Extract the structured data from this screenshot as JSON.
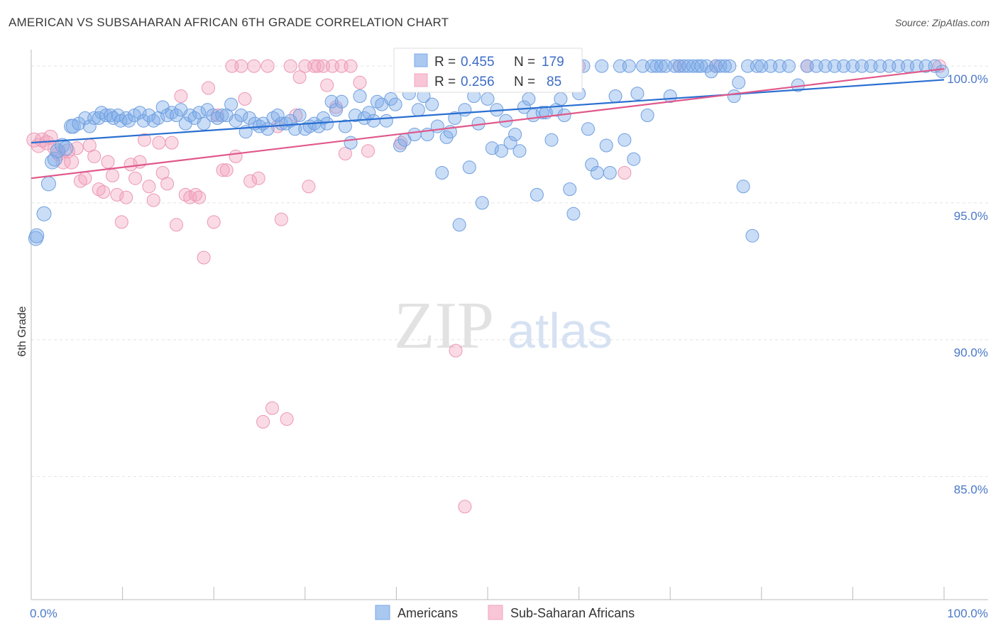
{
  "title": "AMERICAN VS SUBSAHARAN AFRICAN 6TH GRADE CORRELATION CHART",
  "source": "Source: ZipAtlas.com",
  "watermark": {
    "zip": "ZIP",
    "atlas": "atlas"
  },
  "colors": {
    "blue": "#7aaae8",
    "blue_line": "#2a6fd1",
    "pink": "#f2a6bf",
    "pink_line": "#e0588a",
    "tick": "#4a78c8"
  },
  "stats": {
    "american": {
      "r_label": "R =",
      "r": "0.455",
      "n_label": "N =",
      "n": "179"
    },
    "subsaharan": {
      "r_label": "R =",
      "r": "0.256",
      "n_label": "N =",
      "n": "85"
    }
  },
  "chart_data": {
    "type": "scatter",
    "title": "AMERICAN VS SUBSAHARAN AFRICAN 6TH GRADE CORRELATION CHART",
    "xlabel": "",
    "ylabel": "6th Grade",
    "xlim": [
      0,
      100
    ],
    "ylim": [
      80.5,
      100.6
    ],
    "x_tick_labels": [
      "0.0%",
      "100.0%"
    ],
    "y_ticks": [
      85,
      90,
      95,
      100
    ],
    "y_tick_labels": [
      "85.0%",
      "90.0%",
      "95.0%",
      "100.0%"
    ],
    "grid": true,
    "legend_position": "bottom-center",
    "series": [
      {
        "name": "Americans",
        "color": "#7aaae8",
        "trend": {
          "x": [
            0,
            100
          ],
          "y": [
            97.2,
            99.5
          ]
        },
        "points": [
          [
            0.5,
            93.7
          ],
          [
            0.6,
            93.8
          ],
          [
            1.4,
            94.6
          ],
          [
            1.9,
            95.7
          ],
          [
            2.3,
            96.5
          ],
          [
            2.6,
            96.6
          ],
          [
            2.9,
            96.9
          ],
          [
            3.4,
            97.1
          ],
          [
            3.8,
            97.0
          ],
          [
            4.4,
            97.8
          ],
          [
            4.6,
            97.8
          ],
          [
            5.2,
            97.9
          ],
          [
            5.9,
            98.1
          ],
          [
            6.4,
            97.8
          ],
          [
            6.9,
            98.1
          ],
          [
            7.4,
            98.1
          ],
          [
            7.7,
            98.3
          ],
          [
            8.2,
            98.2
          ],
          [
            8.7,
            98.2
          ],
          [
            9.0,
            98.1
          ],
          [
            9.5,
            98.2
          ],
          [
            9.8,
            98.0
          ],
          [
            10.4,
            98.1
          ],
          [
            10.7,
            98.0
          ],
          [
            11.3,
            98.2
          ],
          [
            11.9,
            98.3
          ],
          [
            12.3,
            98.0
          ],
          [
            12.9,
            98.2
          ],
          [
            13.4,
            98.0
          ],
          [
            13.9,
            98.1
          ],
          [
            14.4,
            98.5
          ],
          [
            14.9,
            98.2
          ],
          [
            15.4,
            98.3
          ],
          [
            15.9,
            98.2
          ],
          [
            16.4,
            98.4
          ],
          [
            16.9,
            97.9
          ],
          [
            17.4,
            98.2
          ],
          [
            17.9,
            98.1
          ],
          [
            18.4,
            98.3
          ],
          [
            18.9,
            97.9
          ],
          [
            19.3,
            98.4
          ],
          [
            19.9,
            98.2
          ],
          [
            20.4,
            98.1
          ],
          [
            20.9,
            98.2
          ],
          [
            21.4,
            98.2
          ],
          [
            21.9,
            98.6
          ],
          [
            22.4,
            98.0
          ],
          [
            23.0,
            98.2
          ],
          [
            23.5,
            97.6
          ],
          [
            23.9,
            98.1
          ],
          [
            24.5,
            97.9
          ],
          [
            25.0,
            97.8
          ],
          [
            25.4,
            97.9
          ],
          [
            25.9,
            97.7
          ],
          [
            26.5,
            98.1
          ],
          [
            27.0,
            98.2
          ],
          [
            27.4,
            97.9
          ],
          [
            27.9,
            97.9
          ],
          [
            28.4,
            98.0
          ],
          [
            28.9,
            97.7
          ],
          [
            29.4,
            98.2
          ],
          [
            30.0,
            97.7
          ],
          [
            30.5,
            97.8
          ],
          [
            31.0,
            97.9
          ],
          [
            31.5,
            97.8
          ],
          [
            32.0,
            98.1
          ],
          [
            32.4,
            97.9
          ],
          [
            32.9,
            98.7
          ],
          [
            33.4,
            98.4
          ],
          [
            34.0,
            98.7
          ],
          [
            34.4,
            97.8
          ],
          [
            35.0,
            97.2
          ],
          [
            35.5,
            98.2
          ],
          [
            36.0,
            98.9
          ],
          [
            36.5,
            98.1
          ],
          [
            37.0,
            98.3
          ],
          [
            37.5,
            98.0
          ],
          [
            37.9,
            98.7
          ],
          [
            38.4,
            98.6
          ],
          [
            38.9,
            98.0
          ],
          [
            39.4,
            98.8
          ],
          [
            39.9,
            98.6
          ],
          [
            40.4,
            97.1
          ],
          [
            40.9,
            97.3
          ],
          [
            41.4,
            99.0
          ],
          [
            42.0,
            97.5
          ],
          [
            42.4,
            98.4
          ],
          [
            43.0,
            98.9
          ],
          [
            43.4,
            97.5
          ],
          [
            43.9,
            98.6
          ],
          [
            44.5,
            97.8
          ],
          [
            45.0,
            96.1
          ],
          [
            45.5,
            97.4
          ],
          [
            45.9,
            97.6
          ],
          [
            46.4,
            98.1
          ],
          [
            46.9,
            94.2
          ],
          [
            47.5,
            98.4
          ],
          [
            48.0,
            96.3
          ],
          [
            48.5,
            98.9
          ],
          [
            49.0,
            97.9
          ],
          [
            49.4,
            95.0
          ],
          [
            50.0,
            98.8
          ],
          [
            50.5,
            97.0
          ],
          [
            51.0,
            98.4
          ],
          [
            51.5,
            96.9
          ],
          [
            52.0,
            98.0
          ],
          [
            52.5,
            97.2
          ],
          [
            53.0,
            97.5
          ],
          [
            53.5,
            96.9
          ],
          [
            54.0,
            98.5
          ],
          [
            54.5,
            98.8
          ],
          [
            55.0,
            98.2
          ],
          [
            55.4,
            95.3
          ],
          [
            56.0,
            98.3
          ],
          [
            56.4,
            98.3
          ],
          [
            57.0,
            97.3
          ],
          [
            57.5,
            98.4
          ],
          [
            58.0,
            98.8
          ],
          [
            58.4,
            98.2
          ],
          [
            59.0,
            95.5
          ],
          [
            59.4,
            94.6
          ],
          [
            60.0,
            99.0
          ],
          [
            60.5,
            100.0
          ],
          [
            61.0,
            97.7
          ],
          [
            61.4,
            96.4
          ],
          [
            62.0,
            96.1
          ],
          [
            62.5,
            100.0
          ],
          [
            63.0,
            97.1
          ],
          [
            63.4,
            96.1
          ],
          [
            64.0,
            98.9
          ],
          [
            64.5,
            100.0
          ],
          [
            65.0,
            97.3
          ],
          [
            65.5,
            100.0
          ],
          [
            66.0,
            96.6
          ],
          [
            66.4,
            99.0
          ],
          [
            67.0,
            100.0
          ],
          [
            67.5,
            98.2
          ],
          [
            68.0,
            100.0
          ],
          [
            68.5,
            100.0
          ],
          [
            69.0,
            100.0
          ],
          [
            69.5,
            100.0
          ],
          [
            70.0,
            98.9
          ],
          [
            70.5,
            100.0
          ],
          [
            71.0,
            100.0
          ],
          [
            71.5,
            100.0
          ],
          [
            72.0,
            100.0
          ],
          [
            72.5,
            100.0
          ],
          [
            73.0,
            100.0
          ],
          [
            73.4,
            100.0
          ],
          [
            74.0,
            100.0
          ],
          [
            74.5,
            99.8
          ],
          [
            75.0,
            100.0
          ],
          [
            75.5,
            100.0
          ],
          [
            76.0,
            100.0
          ],
          [
            76.5,
            100.0
          ],
          [
            77.0,
            98.9
          ],
          [
            77.5,
            99.4
          ],
          [
            78.0,
            95.6
          ],
          [
            78.5,
            100.0
          ],
          [
            79.0,
            93.8
          ],
          [
            79.5,
            100.0
          ],
          [
            80.0,
            100.0
          ],
          [
            81.0,
            100.0
          ],
          [
            82.0,
            100.0
          ],
          [
            83.0,
            100.0
          ],
          [
            84.0,
            99.3
          ],
          [
            85.0,
            100.0
          ],
          [
            86.0,
            100.0
          ],
          [
            87.0,
            100.0
          ],
          [
            88.0,
            100.0
          ],
          [
            89.0,
            100.0
          ],
          [
            90.0,
            100.0
          ],
          [
            91.0,
            100.0
          ],
          [
            92.0,
            100.0
          ],
          [
            93.0,
            100.0
          ],
          [
            94.0,
            100.0
          ],
          [
            95.0,
            100.0
          ],
          [
            96.0,
            100.0
          ],
          [
            97.0,
            100.0
          ],
          [
            98.0,
            100.0
          ],
          [
            99.0,
            100.0
          ],
          [
            99.8,
            99.8
          ]
        ]
      },
      {
        "name": "Sub-Saharan Africans",
        "color": "#f2a6bf",
        "trend": {
          "x": [
            0,
            100
          ],
          "y": [
            95.9,
            99.9
          ]
        },
        "points": [
          [
            0.3,
            97.3
          ],
          [
            0.8,
            97.1
          ],
          [
            1.2,
            97.3
          ],
          [
            1.7,
            97.2
          ],
          [
            2.1,
            97.4
          ],
          [
            2.6,
            97.0
          ],
          [
            3.0,
            96.8
          ],
          [
            3.5,
            96.5
          ],
          [
            4.0,
            96.9
          ],
          [
            4.4,
            96.5
          ],
          [
            5.0,
            97.0
          ],
          [
            5.4,
            95.8
          ],
          [
            5.9,
            95.9
          ],
          [
            6.4,
            97.1
          ],
          [
            6.9,
            96.7
          ],
          [
            7.4,
            95.5
          ],
          [
            7.9,
            95.4
          ],
          [
            8.4,
            96.5
          ],
          [
            8.9,
            96.0
          ],
          [
            9.4,
            95.3
          ],
          [
            9.9,
            94.3
          ],
          [
            10.4,
            95.2
          ],
          [
            10.9,
            96.4
          ],
          [
            11.4,
            95.9
          ],
          [
            11.9,
            96.5
          ],
          [
            12.4,
            97.3
          ],
          [
            12.9,
            95.6
          ],
          [
            13.4,
            95.1
          ],
          [
            14.0,
            97.2
          ],
          [
            14.4,
            96.1
          ],
          [
            14.9,
            95.7
          ],
          [
            15.4,
            97.2
          ],
          [
            15.9,
            94.2
          ],
          [
            16.4,
            98.9
          ],
          [
            16.9,
            95.3
          ],
          [
            17.4,
            95.2
          ],
          [
            18.0,
            95.3
          ],
          [
            18.4,
            95.2
          ],
          [
            18.9,
            93.0
          ],
          [
            19.4,
            99.2
          ],
          [
            20.0,
            94.3
          ],
          [
            20.4,
            98.2
          ],
          [
            21.0,
            96.2
          ],
          [
            21.4,
            96.2
          ],
          [
            22.0,
            100.0
          ],
          [
            22.4,
            96.7
          ],
          [
            23.0,
            100.0
          ],
          [
            23.4,
            98.8
          ],
          [
            24.0,
            95.8
          ],
          [
            24.4,
            100.0
          ],
          [
            24.9,
            95.9
          ],
          [
            25.4,
            87.0
          ],
          [
            25.9,
            100.0
          ],
          [
            26.4,
            87.5
          ],
          [
            27.0,
            97.8
          ],
          [
            27.4,
            94.4
          ],
          [
            28.0,
            87.1
          ],
          [
            28.4,
            100.0
          ],
          [
            29.0,
            98.2
          ],
          [
            29.4,
            99.6
          ],
          [
            30.0,
            100.0
          ],
          [
            30.4,
            95.6
          ],
          [
            31.0,
            100.0
          ],
          [
            31.4,
            100.0
          ],
          [
            32.0,
            100.0
          ],
          [
            32.4,
            99.3
          ],
          [
            33.0,
            100.0
          ],
          [
            33.4,
            98.5
          ],
          [
            34.0,
            100.0
          ],
          [
            34.4,
            96.8
          ],
          [
            35.0,
            100.0
          ],
          [
            36.0,
            99.4
          ],
          [
            36.9,
            96.9
          ],
          [
            40.5,
            97.2
          ],
          [
            40.9,
            100.0
          ],
          [
            41.4,
            100.0
          ],
          [
            46.5,
            89.6
          ],
          [
            47.5,
            83.9
          ],
          [
            48.5,
            100.0
          ],
          [
            60.0,
            100.0
          ],
          [
            65.0,
            96.1
          ],
          [
            71.0,
            100.0
          ],
          [
            75.0,
            100.0
          ],
          [
            85.0,
            100.0
          ],
          [
            99.5,
            100.0
          ]
        ]
      }
    ]
  }
}
